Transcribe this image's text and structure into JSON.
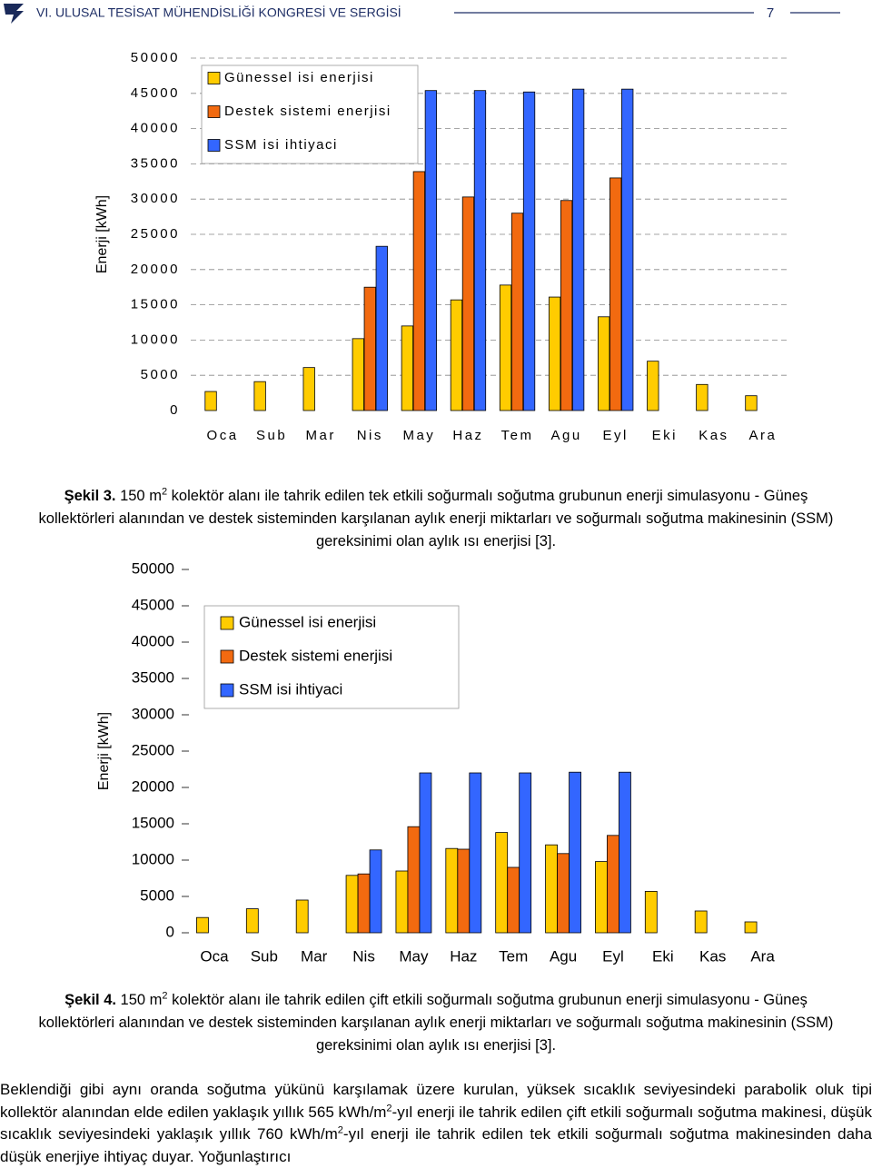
{
  "header": {
    "title": "VI. ULUSAL TESİSAT MÜHENDİSLİĞİ KONGRESİ VE SERGİSİ",
    "page": "7"
  },
  "chart_data": [
    {
      "type": "bar",
      "y_label": "Enerji [kWh]",
      "categories": [
        "Oca",
        "Sub",
        "Mar",
        "Nis",
        "May",
        "Haz",
        "Tem",
        "Agu",
        "Eyl",
        "Eki",
        "Kas",
        "Ara"
      ],
      "series": [
        {
          "name": "Günessel isi enerjisi",
          "color": "#ffcc00",
          "values": [
            2700,
            4100,
            6100,
            10200,
            12000,
            15700,
            17800,
            16100,
            13300,
            7000,
            3700,
            2100
          ]
        },
        {
          "name": "Destek sistemi enerjisi",
          "color": "#f26a10",
          "values": [
            null,
            null,
            null,
            17500,
            33900,
            30300,
            28000,
            29800,
            33000,
            null,
            null,
            null
          ]
        },
        {
          "name": "SSM isi ihtiyaci",
          "color": "#3366ff",
          "values": [
            null,
            null,
            null,
            23300,
            45400,
            45400,
            45200,
            45600,
            45600,
            null,
            null,
            null
          ]
        }
      ],
      "ylim": [
        0,
        50000
      ],
      "yticks": [
        0,
        5000,
        10000,
        15000,
        20000,
        25000,
        30000,
        35000,
        40000,
        45000,
        50000
      ],
      "grid": true,
      "legend": "upper left"
    },
    {
      "type": "bar",
      "y_label": "Enerji [kWh]",
      "categories": [
        "Oca",
        "Sub",
        "Mar",
        "Nis",
        "May",
        "Haz",
        "Tem",
        "Agu",
        "Eyl",
        "Eki",
        "Kas",
        "Ara"
      ],
      "series": [
        {
          "name": "Günessel isi enerjisi",
          "color": "#ffcc00",
          "values": [
            2100,
            3300,
            4500,
            7900,
            8500,
            11600,
            13800,
            12100,
            9800,
            5700,
            3000,
            1500
          ]
        },
        {
          "name": "Destek sistemi enerjisi",
          "color": "#f26a10",
          "values": [
            null,
            null,
            null,
            8100,
            14600,
            11500,
            9000,
            10900,
            13400,
            null,
            null,
            null
          ]
        },
        {
          "name": "SSM isi ihtiyaci",
          "color": "#3366ff",
          "values": [
            null,
            null,
            null,
            11400,
            22000,
            22000,
            22000,
            22100,
            22100,
            null,
            null,
            null
          ]
        }
      ],
      "ylim": [
        0,
        50000
      ],
      "yticks": [
        0,
        5000,
        10000,
        15000,
        20000,
        25000,
        30000,
        35000,
        40000,
        45000,
        50000
      ],
      "grid": false,
      "legend": "upper left"
    }
  ],
  "figures": [
    {
      "label": "Şekil 3.",
      "before": " 150 m",
      "sup": "2",
      "after": " kolektör alanı ile tahrik edilen tek etkili soğurmalı soğutma grubunun enerji simulasyonu - Güneş kollektörleri alanından ve destek sisteminden karşılanan aylık enerji miktarları ve soğurmalı soğutma makinesinin (SSM) gereksinimi olan aylık ısı enerjisi [3]."
    },
    {
      "label": "Şekil 4.",
      "before": " 150 m",
      "sup": "2",
      "after": "  kolektör alanı ile tahrik edilen çift etkili soğurmalı soğutma grubunun enerji simulasyonu - Güneş kollektörleri alanından ve destek sisteminden karşılanan aylık enerji miktarları ve soğurmalı soğutma makinesinin (SSM) gereksinimi olan aylık ısı enerjisi [3]."
    }
  ],
  "body": {
    "parts": [
      "Beklendiği gibi aynı oranda soğutma yükünü karşılamak üzere kurulan, yüksek sıcaklık seviyesindeki parabolik oluk tipi kollektör alanından elde edilen yaklaşık yıllık 565 kWh/m",
      "2",
      "-yıl enerji ile tahrik edilen çift etkili soğurmalı soğutma makinesi, düşük sıcaklık seviyesindeki yaklaşık yıllık 760 kWh/m",
      "2",
      "-yıl enerji ile tahrik edilen tek etkili soğurmalı soğutma makinesinden daha düşük enerjiye ihtiyaç duyar. Yoğunlaştırıcı"
    ]
  }
}
